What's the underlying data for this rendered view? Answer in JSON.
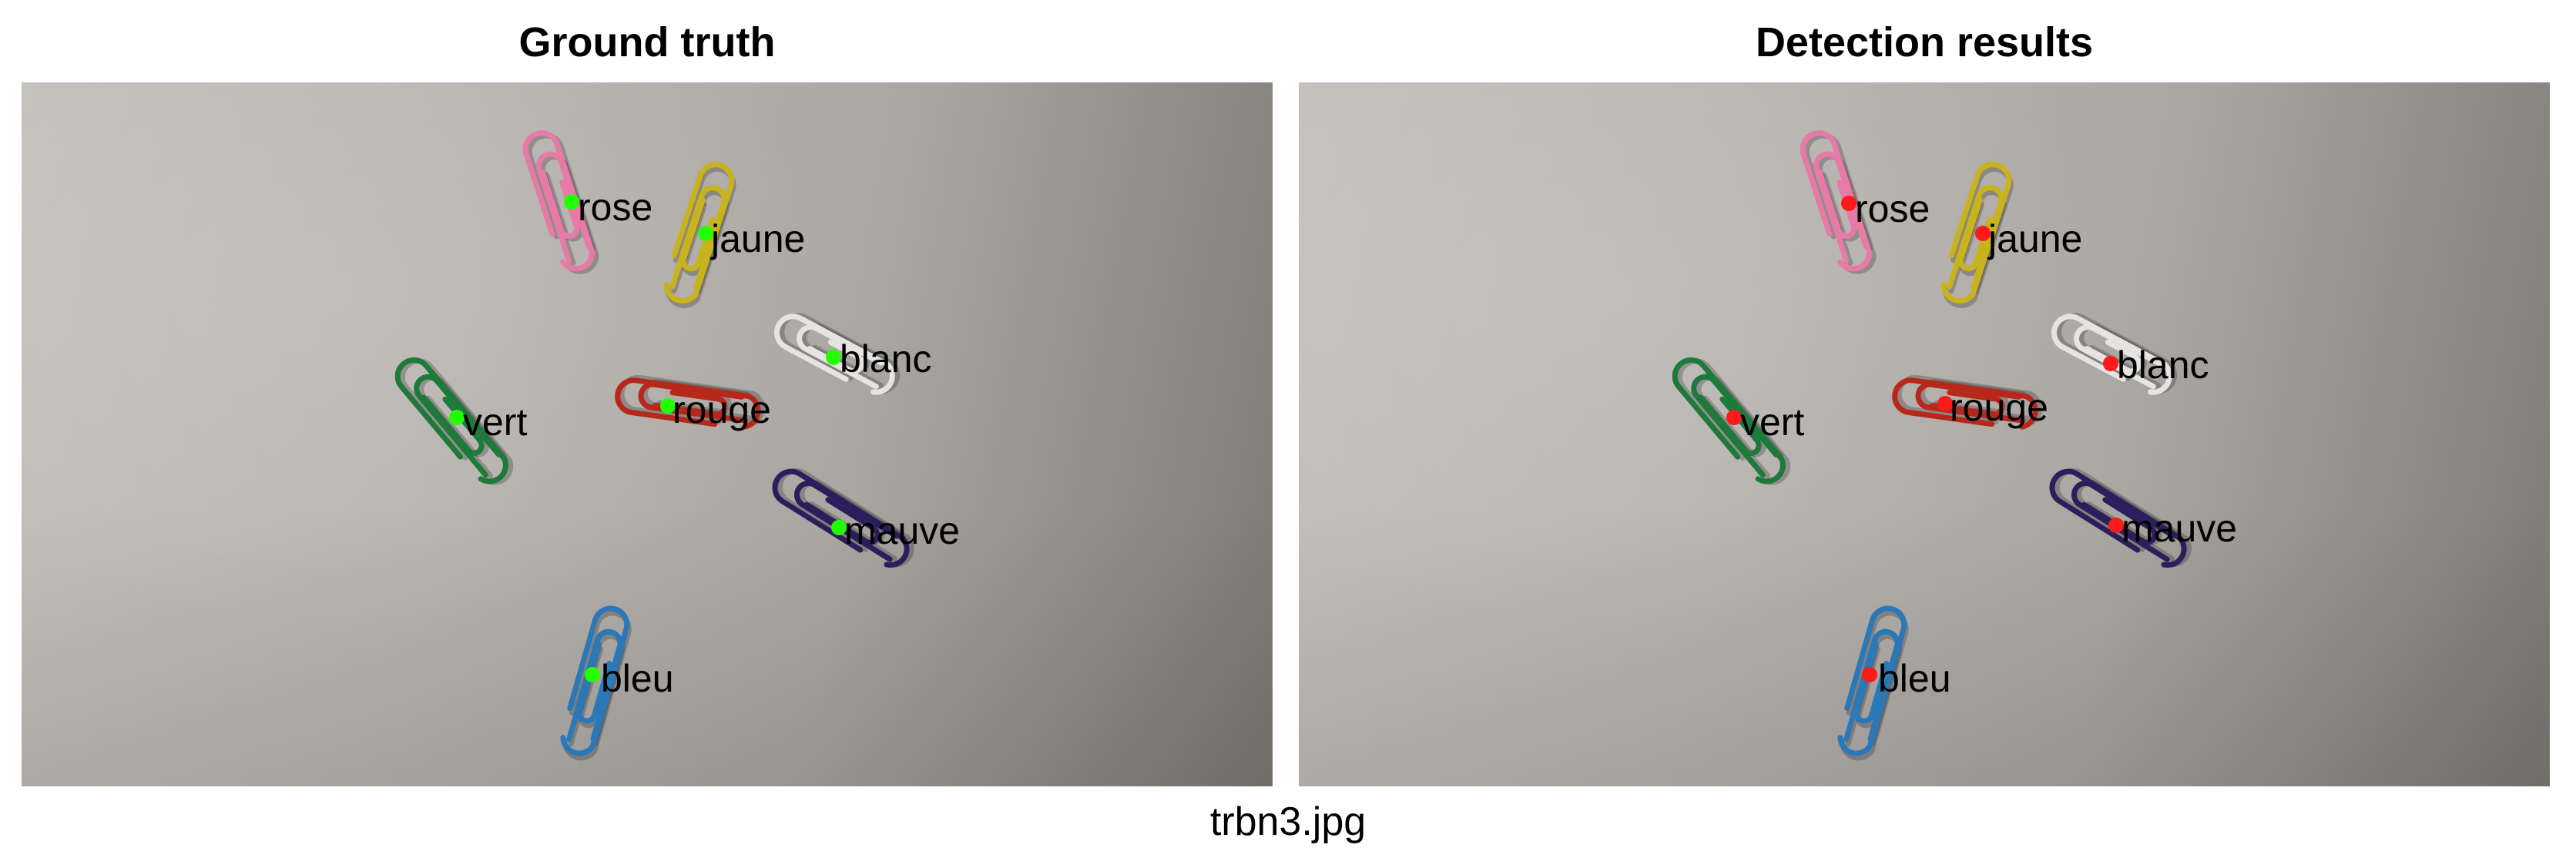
{
  "panels": {
    "left": {
      "title": "Ground truth",
      "marker_color": "#22ff00"
    },
    "right": {
      "title": "Detection results",
      "marker_color": "#ff1a1a"
    }
  },
  "clips": [
    {
      "label": "rose",
      "color": "#e87aa8"
    },
    {
      "label": "jaune",
      "color": "#c8b31c"
    },
    {
      "label": "blanc",
      "color": "#e6e4e2"
    },
    {
      "label": "vert",
      "color": "#1e7a3a"
    },
    {
      "label": "rouge",
      "color": "#b8281a"
    },
    {
      "label": "mauve",
      "color": "#2a1f5c"
    },
    {
      "label": "bleu",
      "color": "#2a78b8"
    }
  ],
  "caption": "trbn3.jpg"
}
